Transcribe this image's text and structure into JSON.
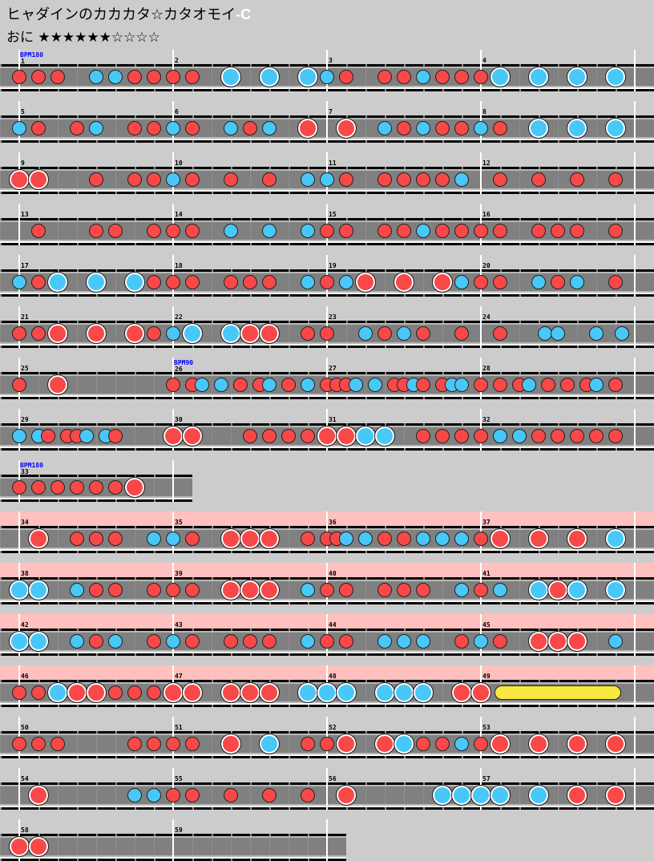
{
  "header": {
    "title": "ヒャダインのカカカタ☆カタオモイ",
    "title_suffix": "-C",
    "difficulty": "おに",
    "stars": "★★★★★★☆☆☆☆",
    "level": 6
  },
  "colors": {
    "don": "#f84848",
    "ka": "#48c8f8",
    "roll": "#f8e840",
    "gogo": "#ffc0c0"
  },
  "legend": {
    "0": "empty",
    "1": "don",
    "2": "ka",
    "3": "big-don",
    "4": "big-ka",
    "5": "roll-start",
    "8": "roll-end"
  },
  "rows": [
    {
      "gogo": false,
      "measures": [
        {
          "num": 1,
          "bpm": "BPM180",
          "notes": "11102211"
        },
        {
          "num": 2,
          "notes": "11040404"
        },
        {
          "num": 3,
          "notes": "21011211"
        },
        {
          "num": 4,
          "notes": "14040404"
        }
      ]
    },
    {
      "gogo": false,
      "measures": [
        {
          "num": 5,
          "notes": "21012011"
        },
        {
          "num": 6,
          "notes": "21021203"
        },
        {
          "num": 7,
          "notes": "03021211"
        },
        {
          "num": 8,
          "notes": "21040404"
        }
      ]
    },
    {
      "gogo": false,
      "measures": [
        {
          "num": 9,
          "notes": "33001011"
        },
        {
          "num": 10,
          "notes": "21010102"
        },
        {
          "num": 11,
          "notes": "21011112"
        },
        {
          "num": 12,
          "notes": "01010101"
        }
      ]
    },
    {
      "gogo": false,
      "measures": [
        {
          "num": 13,
          "notes": "01001101"
        },
        {
          "num": 14,
          "notes": "11020202"
        },
        {
          "num": 15,
          "notes": "11011211"
        },
        {
          "num": 16,
          "notes": "11011101"
        }
      ]
    },
    {
      "gogo": false,
      "measures": [
        {
          "num": 17,
          "notes": "21404041"
        },
        {
          "num": 18,
          "notes": "11011102"
        },
        {
          "num": 19,
          "notes": "12303032"
        },
        {
          "num": 20,
          "notes": "11021201"
        }
      ]
    },
    {
      "gogo": false,
      "measures": [
        {
          "num": 21,
          "notes": "11303031"
        },
        {
          "num": 22,
          "notes": "24043301"
        },
        {
          "num": 23,
          "notes": "10212101"
        },
        {
          "num": 24,
          "notes": "000100000020200000200020"
        }
      ]
    },
    {
      "gogo": false,
      "measures": [
        {
          "num": 25,
          "notes": "10300000"
        },
        {
          "num": 26,
          "bpm": "BPM90",
          "notes": "1012020101201020"
        },
        {
          "num": 27,
          "notes": "1112020112101220"
        },
        {
          "num": 28,
          "notes": "1010120101012010"
        }
      ]
    },
    {
      "gogo": false,
      "measures": [
        {
          "num": 29,
          "notes": "2021011202100000"
        },
        {
          "num": 30,
          "notes": "3030000010101010"
        },
        {
          "num": 31,
          "notes": "33440111"
        },
        {
          "num": 32,
          "notes": "12211111"
        }
      ]
    },
    {
      "gogo": false,
      "measures": [
        {
          "num": 33,
          "bpm": "BPM180",
          "notes": "11111130"
        }
      ]
    },
    {
      "gogo": true,
      "measures": [
        {
          "num": 34,
          "notes": "03011102"
        },
        {
          "num": 35,
          "notes": "21033301"
        },
        {
          "num": 36,
          "notes": "1120201010202020"
        },
        {
          "num": 37,
          "notes": "13030304"
        }
      ]
    },
    {
      "gogo": true,
      "measures": [
        {
          "num": 38,
          "notes": "44021101"
        },
        {
          "num": 39,
          "notes": "11033302"
        },
        {
          "num": 40,
          "notes": "11011102"
        },
        {
          "num": 41,
          "notes": "12043404"
        }
      ]
    },
    {
      "gogo": true,
      "measures": [
        {
          "num": 42,
          "notes": "44021201"
        },
        {
          "num": 43,
          "notes": "21011102"
        },
        {
          "num": 44,
          "notes": "11022201"
        },
        {
          "num": 45,
          "notes": "21033302"
        }
      ]
    },
    {
      "gogo": true,
      "measures": [
        {
          "num": 46,
          "notes": "11433111"
        },
        {
          "num": 47,
          "notes": "33033304"
        },
        {
          "num": 48,
          "notes": "44044403"
        },
        {
          "num": 49,
          "notes": "35000008"
        }
      ]
    },
    {
      "gogo": false,
      "measures": [
        {
          "num": 50,
          "notes": "11100011"
        },
        {
          "num": 51,
          "notes": "11030401"
        },
        {
          "num": 52,
          "notes": "13034112"
        },
        {
          "num": 53,
          "notes": "13030303"
        }
      ]
    },
    {
      "gogo": false,
      "measures": [
        {
          "num": 54,
          "notes": "03000022"
        },
        {
          "num": 55,
          "notes": "11010101"
        },
        {
          "num": 56,
          "notes": "03000044"
        },
        {
          "num": 57,
          "notes": "44040303"
        }
      ]
    },
    {
      "gogo": false,
      "measures": [
        {
          "num": 58,
          "notes": "33000000"
        },
        {
          "num": 59,
          "notes": "00000000"
        }
      ]
    }
  ]
}
